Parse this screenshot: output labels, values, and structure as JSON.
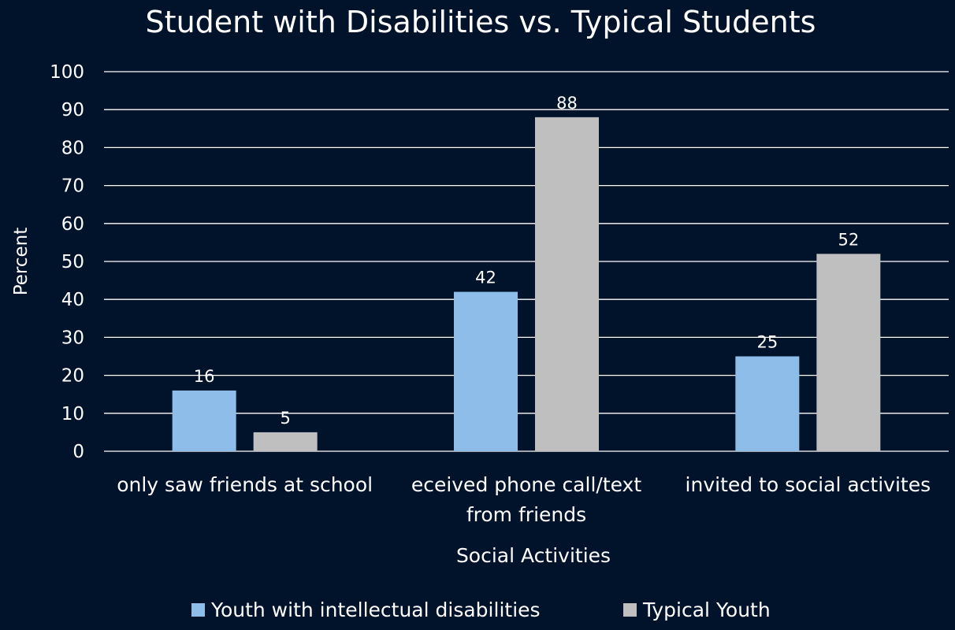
{
  "chart_data": {
    "type": "bar",
    "title": "Student with Disabilities vs. Typical Students",
    "xlabel": "Social Activities",
    "ylabel": "Percent",
    "categories": [
      [
        "only saw friends at school"
      ],
      [
        "eceived phone call/text",
        "from friends"
      ],
      [
        "invited to social activites"
      ]
    ],
    "series": [
      {
        "name": "Youth with intellectual disabilities",
        "values": [
          16,
          42,
          25
        ],
        "color": "#8dbde8"
      },
      {
        "name": "Typical Youth",
        "values": [
          5,
          88,
          52
        ],
        "color": "#bfbfbf"
      }
    ],
    "ylim": [
      0,
      100
    ],
    "yticks": [
      0,
      10,
      20,
      30,
      40,
      50,
      60,
      70,
      80,
      90,
      100
    ],
    "grid": true,
    "legend_position": "bottom",
    "data_labels": true,
    "background": "#01132b",
    "gridline_color": "#ffffff"
  }
}
